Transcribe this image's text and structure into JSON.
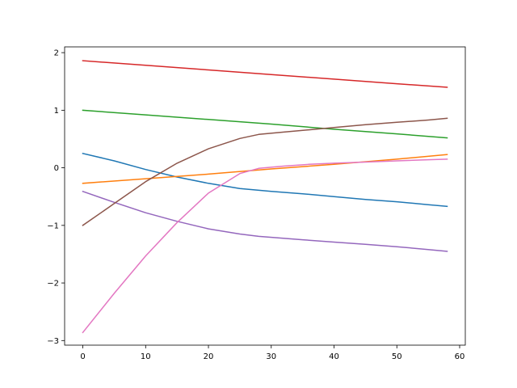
{
  "chart_data": {
    "type": "line",
    "title": "",
    "xlabel": "",
    "ylabel": "",
    "xlim": [
      -2.9,
      60.9
    ],
    "ylim": [
      -3.08,
      2.1
    ],
    "xticks": [
      0,
      10,
      20,
      30,
      40,
      50,
      60
    ],
    "yticks": [
      -3,
      -2,
      -1,
      0,
      1,
      2
    ],
    "grid": false,
    "legend": "none",
    "series": [
      {
        "color": "#1f77b4",
        "points": [
          [
            0,
            0.25
          ],
          [
            5,
            0.12
          ],
          [
            10,
            -0.03
          ],
          [
            15,
            -0.16
          ],
          [
            20,
            -0.27
          ],
          [
            25,
            -0.36
          ],
          [
            30,
            -0.41
          ],
          [
            35,
            -0.45
          ],
          [
            40,
            -0.5
          ],
          [
            45,
            -0.55
          ],
          [
            50,
            -0.59
          ],
          [
            55,
            -0.64
          ],
          [
            58,
            -0.67
          ]
        ]
      },
      {
        "color": "#ff7f0e",
        "points": [
          [
            0,
            -0.27
          ],
          [
            10,
            -0.19
          ],
          [
            20,
            -0.11
          ],
          [
            30,
            -0.02
          ],
          [
            40,
            0.06
          ],
          [
            50,
            0.15
          ],
          [
            58,
            0.23
          ]
        ]
      },
      {
        "color": "#2ca02c",
        "points": [
          [
            0,
            1.0
          ],
          [
            10,
            0.92
          ],
          [
            20,
            0.84
          ],
          [
            30,
            0.76
          ],
          [
            40,
            0.67
          ],
          [
            50,
            0.59
          ],
          [
            58,
            0.52
          ]
        ]
      },
      {
        "color": "#d62728",
        "points": [
          [
            0,
            1.86
          ],
          [
            10,
            1.78
          ],
          [
            20,
            1.7
          ],
          [
            30,
            1.62
          ],
          [
            40,
            1.54
          ],
          [
            50,
            1.46
          ],
          [
            58,
            1.4
          ]
        ]
      },
      {
        "color": "#9467bd",
        "points": [
          [
            0,
            -0.41
          ],
          [
            5,
            -0.6
          ],
          [
            10,
            -0.78
          ],
          [
            15,
            -0.93
          ],
          [
            20,
            -1.06
          ],
          [
            25,
            -1.15
          ],
          [
            28,
            -1.19
          ],
          [
            35,
            -1.25
          ],
          [
            40,
            -1.29
          ],
          [
            45,
            -1.33
          ],
          [
            50,
            -1.37
          ],
          [
            55,
            -1.42
          ],
          [
            58,
            -1.45
          ]
        ]
      },
      {
        "color": "#8c564b",
        "points": [
          [
            0,
            -1.0
          ],
          [
            5,
            -0.62
          ],
          [
            10,
            -0.24
          ],
          [
            15,
            0.08
          ],
          [
            20,
            0.33
          ],
          [
            25,
            0.51
          ],
          [
            28,
            0.58
          ],
          [
            32,
            0.62
          ],
          [
            36,
            0.66
          ],
          [
            40,
            0.7
          ],
          [
            45,
            0.75
          ],
          [
            50,
            0.79
          ],
          [
            55,
            0.83
          ],
          [
            58,
            0.86
          ]
        ]
      },
      {
        "color": "#e377c2",
        "points": [
          [
            0,
            -2.86
          ],
          [
            5,
            -2.18
          ],
          [
            10,
            -1.53
          ],
          [
            15,
            -0.95
          ],
          [
            20,
            -0.44
          ],
          [
            25,
            -0.1
          ],
          [
            28,
            -0.01
          ],
          [
            32,
            0.03
          ],
          [
            36,
            0.06
          ],
          [
            40,
            0.08
          ],
          [
            45,
            0.1
          ],
          [
            50,
            0.12
          ],
          [
            55,
            0.14
          ],
          [
            58,
            0.15
          ]
        ]
      }
    ]
  }
}
